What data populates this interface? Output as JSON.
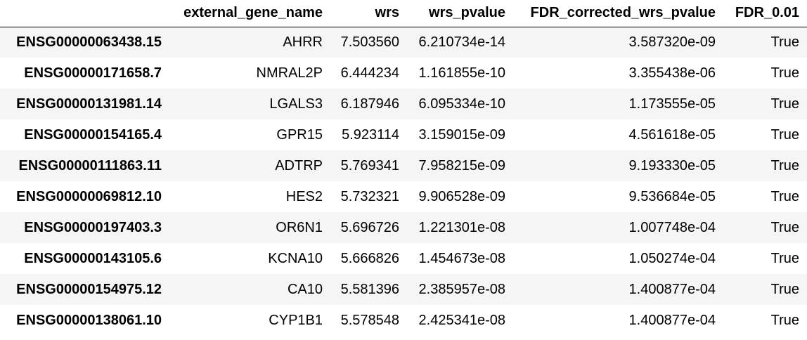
{
  "table": {
    "index_header": "",
    "columns": [
      "external_gene_name",
      "wrs",
      "wrs_pvalue",
      "FDR_corrected_wrs_pvalue",
      "FDR_0.01"
    ],
    "rows": [
      {
        "index": "ENSG00000063438.15",
        "cells": [
          "AHRR",
          "7.503560",
          "6.210734e-14",
          "3.587320e-09",
          "True"
        ]
      },
      {
        "index": "ENSG00000171658.7",
        "cells": [
          "NMRAL2P",
          "6.444234",
          "1.161855e-10",
          "3.355438e-06",
          "True"
        ]
      },
      {
        "index": "ENSG00000131981.14",
        "cells": [
          "LGALS3",
          "6.187946",
          "6.095334e-10",
          "1.173555e-05",
          "True"
        ]
      },
      {
        "index": "ENSG00000154165.4",
        "cells": [
          "GPR15",
          "5.923114",
          "3.159015e-09",
          "4.561618e-05",
          "True"
        ]
      },
      {
        "index": "ENSG00000111863.11",
        "cells": [
          "ADTRP",
          "5.769341",
          "7.958215e-09",
          "9.193330e-05",
          "True"
        ]
      },
      {
        "index": "ENSG00000069812.10",
        "cells": [
          "HES2",
          "5.732321",
          "9.906528e-09",
          "9.536684e-05",
          "True"
        ]
      },
      {
        "index": "ENSG00000197403.3",
        "cells": [
          "OR6N1",
          "5.696726",
          "1.221301e-08",
          "1.007748e-04",
          "True"
        ]
      },
      {
        "index": "ENSG00000143105.6",
        "cells": [
          "KCNA10",
          "5.666826",
          "1.454673e-08",
          "1.050274e-04",
          "True"
        ]
      },
      {
        "index": "ENSG00000154975.12",
        "cells": [
          "CA10",
          "5.581396",
          "2.385957e-08",
          "1.400877e-04",
          "True"
        ]
      },
      {
        "index": "ENSG00000138061.10",
        "cells": [
          "CYP1B1",
          "5.578548",
          "2.425341e-08",
          "1.400877e-04",
          "True"
        ]
      }
    ]
  }
}
